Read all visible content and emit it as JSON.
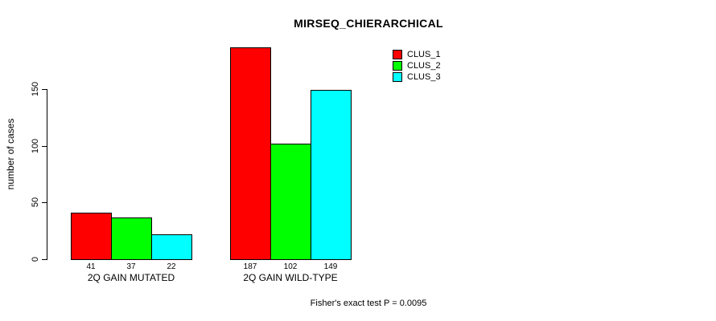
{
  "chart_data": {
    "type": "bar",
    "title": "MIRSEQ_CHIERARCHICAL",
    "ylabel": "number of cases",
    "xlabel": "",
    "categories": [
      "2Q GAIN MUTATED",
      "2Q GAIN WILD-TYPE"
    ],
    "series": [
      {
        "name": "CLUS_1",
        "color": "#FF0000",
        "values": [
          41,
          187
        ]
      },
      {
        "name": "CLUS_2",
        "color": "#00FF00",
        "values": [
          37,
          102
        ]
      },
      {
        "name": "CLUS_3",
        "color": "#00FFFF",
        "values": [
          22,
          149
        ]
      }
    ],
    "bar_value_labels": [
      [
        41,
        37,
        22
      ],
      [
        187,
        102,
        149
      ]
    ],
    "yticks": [
      0,
      50,
      100,
      150
    ],
    "ylim": [
      0,
      187
    ],
    "grid": false,
    "legend_position": "top-right",
    "bar_border_color": "#000000",
    "footnote": "Fisher's exact test P = 0.0095"
  }
}
